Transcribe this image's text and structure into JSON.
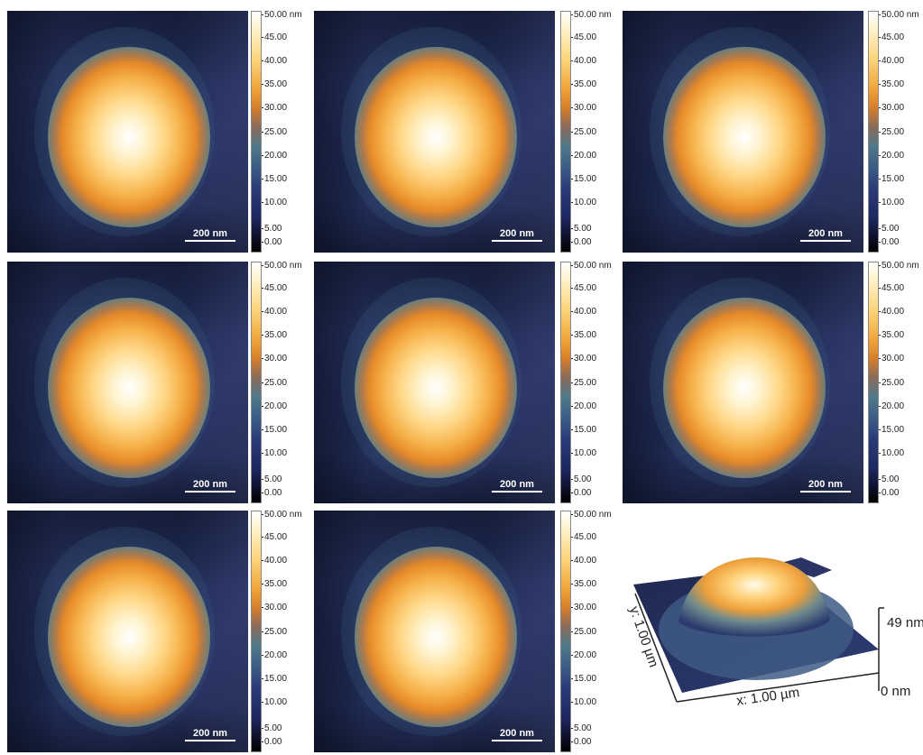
{
  "panels": [
    {
      "scale_bar": "200 nm"
    },
    {
      "scale_bar": "200 nm"
    },
    {
      "scale_bar": "200 nm"
    },
    {
      "scale_bar": "200 nm"
    },
    {
      "scale_bar": "200 nm"
    },
    {
      "scale_bar": "200 nm"
    },
    {
      "scale_bar": "200 nm"
    },
    {
      "scale_bar": "200 nm"
    }
  ],
  "colorbar_labels": [
    "50.00 nm",
    "45.00",
    "40.00",
    "35.00",
    "30.00",
    "25.00",
    "20.00",
    "15.00",
    "10.00",
    "5.00",
    "0.00"
  ],
  "surface_3d": {
    "y_label": "y: 1.00 µm",
    "x_label": "x: 1.00 µm",
    "z_max_label": "49 nm",
    "z_min_label": "0 nm"
  }
}
